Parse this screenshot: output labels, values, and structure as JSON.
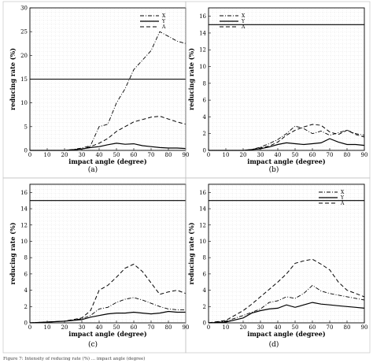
{
  "caption": "Figure 7: Intensity of reducing rate (%) ... impact angle (degree)",
  "legend_labels": [
    "X",
    "Y",
    "A"
  ],
  "chart_data": [
    {
      "type": "line",
      "panel_label": "(a)",
      "xlabel": "impact angle (degree)",
      "ylabel": "reducing rate (%)",
      "xlim": [
        0,
        90
      ],
      "ylim": [
        0,
        30
      ],
      "xticks": [
        0,
        10,
        20,
        30,
        40,
        50,
        60,
        70,
        80,
        90
      ],
      "yticks": [
        0,
        5,
        10,
        15,
        20,
        25,
        30
      ],
      "grid": true,
      "legend_position": "top-right",
      "hline": 15,
      "series": [
        {
          "name": "X",
          "dash": "dashdot",
          "points": [
            [
              0,
              0
            ],
            [
              20,
              0
            ],
            [
              25,
              0.2
            ],
            [
              30,
              0.5
            ],
            [
              35,
              1.0
            ],
            [
              40,
              5
            ],
            [
              45,
              5.5
            ],
            [
              50,
              10
            ],
            [
              55,
              13
            ],
            [
              60,
              17
            ],
            [
              65,
              19
            ],
            [
              70,
              21
            ],
            [
              75,
              25
            ],
            [
              80,
              24
            ],
            [
              85,
              23
            ],
            [
              90,
              22.5
            ]
          ]
        },
        {
          "name": "Y",
          "dash": "solid",
          "points": [
            [
              0,
              0
            ],
            [
              20,
              0
            ],
            [
              30,
              0.3
            ],
            [
              35,
              0.6
            ],
            [
              40,
              0.8
            ],
            [
              45,
              1.2
            ],
            [
              50,
              1.5
            ],
            [
              55,
              1.3
            ],
            [
              60,
              1.4
            ],
            [
              65,
              1.0
            ],
            [
              70,
              0.8
            ],
            [
              75,
              0.6
            ],
            [
              80,
              0.5
            ],
            [
              85,
              0.5
            ],
            [
              90,
              0.4
            ]
          ]
        },
        {
          "name": "A",
          "dash": "dashed",
          "points": [
            [
              0,
              0
            ],
            [
              20,
              0
            ],
            [
              25,
              0.1
            ],
            [
              30,
              0.3
            ],
            [
              35,
              0.8
            ],
            [
              40,
              1.5
            ],
            [
              45,
              2.5
            ],
            [
              50,
              4
            ],
            [
              55,
              5
            ],
            [
              60,
              6
            ],
            [
              65,
              6.5
            ],
            [
              70,
              7
            ],
            [
              75,
              7.2
            ],
            [
              80,
              6.6
            ],
            [
              85,
              6
            ],
            [
              90,
              5.5
            ]
          ]
        }
      ]
    },
    {
      "type": "line",
      "panel_label": "(b)",
      "xlabel": "impact angle (degree)",
      "ylabel": "reducing rate (%)",
      "xlim": [
        0,
        90
      ],
      "ylim": [
        0,
        17
      ],
      "xticks": [
        0,
        10,
        20,
        30,
        40,
        50,
        60,
        70,
        80,
        90
      ],
      "yticks": [
        0,
        2,
        4,
        6,
        8,
        10,
        12,
        14,
        16
      ],
      "grid": true,
      "legend_position": "top-left",
      "hline": 15,
      "series": [
        {
          "name": "X",
          "dash": "dashdot",
          "points": [
            [
              0,
              0
            ],
            [
              20,
              0
            ],
            [
              25,
              0.1
            ],
            [
              30,
              0.4
            ],
            [
              35,
              0.8
            ],
            [
              40,
              1.3
            ],
            [
              45,
              2.0
            ],
            [
              50,
              2.9
            ],
            [
              55,
              2.6
            ],
            [
              60,
              2.0
            ],
            [
              65,
              2.3
            ],
            [
              70,
              1.8
            ],
            [
              75,
              2.1
            ],
            [
              80,
              2.4
            ],
            [
              85,
              2.0
            ],
            [
              90,
              1.8
            ]
          ]
        },
        {
          "name": "Y",
          "dash": "solid",
          "points": [
            [
              0,
              0
            ],
            [
              20,
              0
            ],
            [
              30,
              0.2
            ],
            [
              35,
              0.4
            ],
            [
              40,
              0.7
            ],
            [
              45,
              0.9
            ],
            [
              50,
              0.8
            ],
            [
              55,
              0.7
            ],
            [
              60,
              0.8
            ],
            [
              65,
              0.9
            ],
            [
              70,
              1.4
            ],
            [
              75,
              1.0
            ],
            [
              80,
              0.7
            ],
            [
              85,
              0.7
            ],
            [
              90,
              0.6
            ]
          ]
        },
        {
          "name": "A",
          "dash": "dashed",
          "points": [
            [
              0,
              0
            ],
            [
              20,
              0
            ],
            [
              25,
              0.1
            ],
            [
              30,
              0.3
            ],
            [
              35,
              0.5
            ],
            [
              40,
              1.0
            ],
            [
              45,
              1.8
            ],
            [
              50,
              2.4
            ],
            [
              55,
              2.8
            ],
            [
              60,
              3.1
            ],
            [
              65,
              3.0
            ],
            [
              70,
              2.2
            ],
            [
              75,
              1.9
            ],
            [
              80,
              2.4
            ],
            [
              85,
              1.9
            ],
            [
              90,
              1.6
            ]
          ]
        }
      ]
    },
    {
      "type": "line",
      "panel_label": "(c)",
      "xlabel": "impact angle (degree)",
      "ylabel": "reducing rate (%)",
      "xlim": [
        0,
        90
      ],
      "ylim": [
        0,
        17
      ],
      "xticks": [
        0,
        10,
        20,
        30,
        40,
        50,
        60,
        70,
        80,
        90
      ],
      "yticks": [
        0,
        2,
        4,
        6,
        8,
        10,
        12,
        14,
        16
      ],
      "grid": true,
      "legend_position": "none",
      "hline": 15,
      "series": [
        {
          "name": "X",
          "dash": "dashdot",
          "points": [
            [
              0,
              0
            ],
            [
              10,
              0.1
            ],
            [
              20,
              0.2
            ],
            [
              30,
              0.5
            ],
            [
              35,
              0.9
            ],
            [
              40,
              1.7
            ],
            [
              45,
              1.9
            ],
            [
              50,
              2.5
            ],
            [
              55,
              2.9
            ],
            [
              60,
              3.1
            ],
            [
              65,
              2.8
            ],
            [
              70,
              2.4
            ],
            [
              75,
              2.0
            ],
            [
              80,
              1.7
            ],
            [
              85,
              1.6
            ],
            [
              90,
              1.6
            ]
          ]
        },
        {
          "name": "Y",
          "dash": "solid",
          "points": [
            [
              0,
              0
            ],
            [
              10,
              0.1
            ],
            [
              20,
              0.2
            ],
            [
              30,
              0.4
            ],
            [
              35,
              0.7
            ],
            [
              40,
              0.9
            ],
            [
              45,
              1.1
            ],
            [
              50,
              1.2
            ],
            [
              55,
              1.2
            ],
            [
              60,
              1.3
            ],
            [
              65,
              1.2
            ],
            [
              70,
              1.1
            ],
            [
              75,
              1.2
            ],
            [
              80,
              1.4
            ],
            [
              85,
              1.3
            ],
            [
              90,
              1.3
            ]
          ]
        },
        {
          "name": "A",
          "dash": "dashed",
          "points": [
            [
              0,
              0
            ],
            [
              10,
              0.1
            ],
            [
              20,
              0.2
            ],
            [
              30,
              0.6
            ],
            [
              35,
              1.5
            ],
            [
              40,
              4.0
            ],
            [
              45,
              4.6
            ],
            [
              50,
              5.6
            ],
            [
              55,
              6.7
            ],
            [
              60,
              7.2
            ],
            [
              65,
              6.3
            ],
            [
              70,
              4.9
            ],
            [
              75,
              3.5
            ],
            [
              80,
              3.8
            ],
            [
              85,
              4.0
            ],
            [
              90,
              3.6
            ]
          ]
        }
      ]
    },
    {
      "type": "line",
      "panel_label": "(d)",
      "xlabel": "impact angle (degree)",
      "ylabel": "reducing rate (%)",
      "xlim": [
        0,
        90
      ],
      "ylim": [
        0,
        17
      ],
      "xticks": [
        0,
        10,
        20,
        30,
        40,
        50,
        60,
        70,
        80,
        90
      ],
      "yticks": [
        0,
        2,
        4,
        6,
        8,
        10,
        12,
        14,
        16
      ],
      "grid": true,
      "legend_position": "top-right",
      "hline": 15,
      "series": [
        {
          "name": "X",
          "dash": "dashdot",
          "points": [
            [
              0,
              0
            ],
            [
              10,
              0.2
            ],
            [
              20,
              0.9
            ],
            [
              30,
              1.7
            ],
            [
              35,
              2.5
            ],
            [
              40,
              2.7
            ],
            [
              45,
              3.2
            ],
            [
              50,
              3.0
            ],
            [
              55,
              3.6
            ],
            [
              60,
              4.6
            ],
            [
              65,
              3.9
            ],
            [
              70,
              3.6
            ],
            [
              75,
              3.4
            ],
            [
              80,
              3.2
            ],
            [
              85,
              3.0
            ],
            [
              90,
              2.8
            ]
          ]
        },
        {
          "name": "Y",
          "dash": "solid",
          "points": [
            [
              0,
              0
            ],
            [
              10,
              0.1
            ],
            [
              20,
              0.6
            ],
            [
              25,
              1.2
            ],
            [
              30,
              1.5
            ],
            [
              35,
              1.7
            ],
            [
              40,
              1.8
            ],
            [
              45,
              2.2
            ],
            [
              50,
              1.9
            ],
            [
              55,
              2.2
            ],
            [
              60,
              2.5
            ],
            [
              65,
              2.3
            ],
            [
              70,
              2.2
            ],
            [
              75,
              2.1
            ],
            [
              80,
              2.0
            ],
            [
              85,
              1.9
            ],
            [
              90,
              1.8
            ]
          ]
        },
        {
          "name": "A",
          "dash": "dashed",
          "points": [
            [
              0,
              0
            ],
            [
              10,
              0.3
            ],
            [
              20,
              1.5
            ],
            [
              25,
              2.3
            ],
            [
              30,
              3.2
            ],
            [
              35,
              4.1
            ],
            [
              40,
              5.0
            ],
            [
              45,
              6.0
            ],
            [
              50,
              7.3
            ],
            [
              55,
              7.6
            ],
            [
              60,
              7.8
            ],
            [
              65,
              7.2
            ],
            [
              70,
              6.5
            ],
            [
              75,
              5.0
            ],
            [
              80,
              4.0
            ],
            [
              85,
              3.6
            ],
            [
              90,
              3.2
            ]
          ]
        }
      ]
    }
  ]
}
